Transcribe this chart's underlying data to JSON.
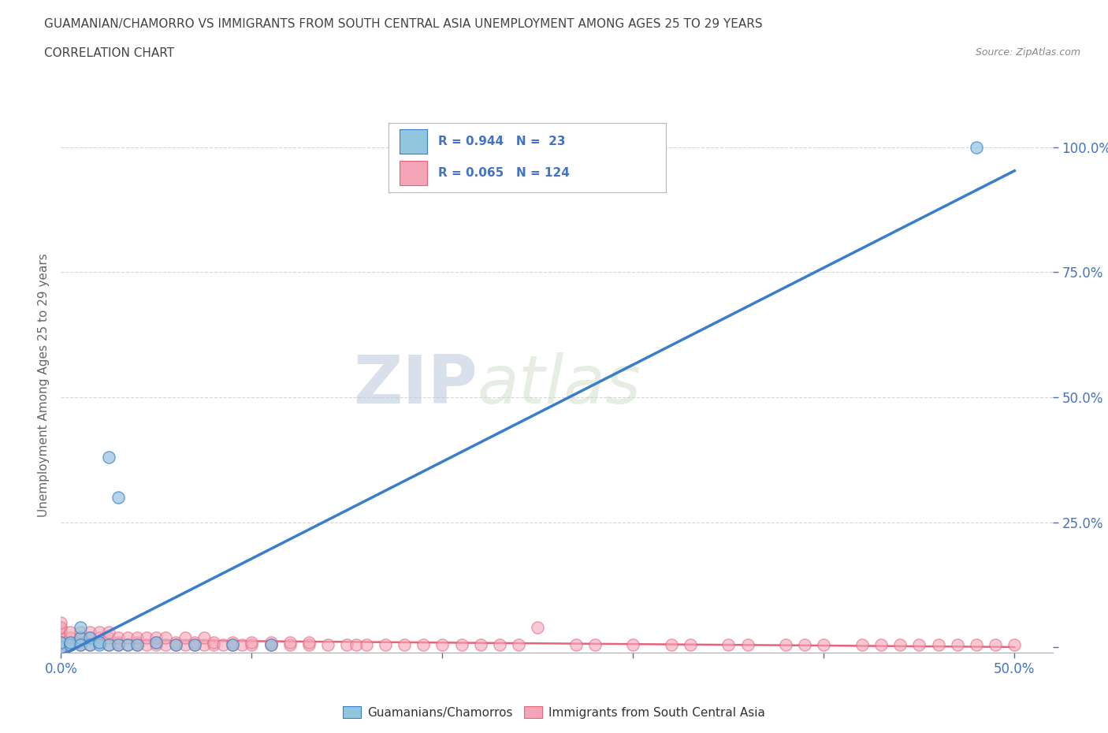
{
  "title_line1": "GUAMANIAN/CHAMORRO VS IMMIGRANTS FROM SOUTH CENTRAL ASIA UNEMPLOYMENT AMONG AGES 25 TO 29 YEARS",
  "title_line2": "CORRELATION CHART",
  "source_text": "Source: ZipAtlas.com",
  "ylabel": "Unemployment Among Ages 25 to 29 years",
  "xlim": [
    0.0,
    0.52
  ],
  "ylim": [
    -0.01,
    1.06
  ],
  "blue_R": 0.944,
  "blue_N": 23,
  "pink_R": 0.065,
  "pink_N": 124,
  "blue_color": "#92C5DE",
  "blue_line_color": "#3A7DC9",
  "pink_color": "#F4A6B8",
  "pink_line_color": "#E8637A",
  "blue_scatter_x": [
    0.0,
    0.0,
    0.005,
    0.005,
    0.01,
    0.01,
    0.01,
    0.015,
    0.015,
    0.02,
    0.02,
    0.025,
    0.025,
    0.03,
    0.03,
    0.035,
    0.04,
    0.05,
    0.06,
    0.07,
    0.09,
    0.11,
    0.48
  ],
  "blue_scatter_y": [
    0.0,
    0.01,
    0.005,
    0.01,
    0.02,
    0.04,
    0.005,
    0.02,
    0.005,
    0.005,
    0.01,
    0.38,
    0.005,
    0.3,
    0.005,
    0.005,
    0.005,
    0.01,
    0.005,
    0.005,
    0.005,
    0.005,
    1.0
  ],
  "pink_scatter_x": [
    0.0,
    0.0,
    0.0,
    0.0,
    0.0,
    0.0,
    0.0,
    0.0,
    0.0,
    0.0,
    0.0,
    0.005,
    0.005,
    0.005,
    0.01,
    0.01,
    0.01,
    0.01,
    0.015,
    0.015,
    0.015,
    0.02,
    0.02,
    0.02,
    0.025,
    0.025,
    0.025,
    0.03,
    0.03,
    0.03,
    0.035,
    0.035,
    0.04,
    0.04,
    0.04,
    0.045,
    0.045,
    0.05,
    0.05,
    0.05,
    0.055,
    0.055,
    0.06,
    0.06,
    0.065,
    0.065,
    0.07,
    0.07,
    0.075,
    0.075,
    0.08,
    0.08,
    0.085,
    0.09,
    0.09,
    0.095,
    0.1,
    0.1,
    0.11,
    0.11,
    0.12,
    0.12,
    0.13,
    0.13,
    0.14,
    0.15,
    0.155,
    0.16,
    0.17,
    0.18,
    0.19,
    0.2,
    0.21,
    0.22,
    0.23,
    0.24,
    0.25,
    0.27,
    0.28,
    0.3,
    0.32,
    0.33,
    0.35,
    0.36,
    0.38,
    0.39,
    0.4,
    0.42,
    0.43,
    0.44,
    0.45,
    0.46,
    0.47,
    0.48,
    0.49,
    0.5
  ],
  "pink_scatter_y": [
    0.0,
    0.005,
    0.01,
    0.01,
    0.02,
    0.02,
    0.03,
    0.03,
    0.04,
    0.04,
    0.05,
    0.005,
    0.02,
    0.03,
    0.005,
    0.01,
    0.02,
    0.03,
    0.005,
    0.02,
    0.03,
    0.01,
    0.02,
    0.03,
    0.005,
    0.02,
    0.03,
    0.005,
    0.01,
    0.02,
    0.005,
    0.02,
    0.005,
    0.01,
    0.02,
    0.005,
    0.02,
    0.005,
    0.01,
    0.02,
    0.005,
    0.02,
    0.005,
    0.01,
    0.005,
    0.02,
    0.005,
    0.01,
    0.005,
    0.02,
    0.005,
    0.01,
    0.005,
    0.005,
    0.01,
    0.005,
    0.005,
    0.01,
    0.005,
    0.01,
    0.005,
    0.01,
    0.005,
    0.01,
    0.005,
    0.005,
    0.005,
    0.005,
    0.005,
    0.005,
    0.005,
    0.005,
    0.005,
    0.005,
    0.005,
    0.005,
    0.04,
    0.005,
    0.005,
    0.005,
    0.005,
    0.005,
    0.005,
    0.005,
    0.005,
    0.005,
    0.005,
    0.005,
    0.005,
    0.005,
    0.005,
    0.005,
    0.005,
    0.005,
    0.005,
    0.005
  ],
  "watermark_text1": "ZIP",
  "watermark_text2": "atlas",
  "bg_color": "#FFFFFF",
  "grid_color": "#CCCCCC",
  "title_color": "#444444",
  "axis_label_color": "#666666",
  "tick_color": "#4472C4",
  "legend_text_color": "#4472C4"
}
